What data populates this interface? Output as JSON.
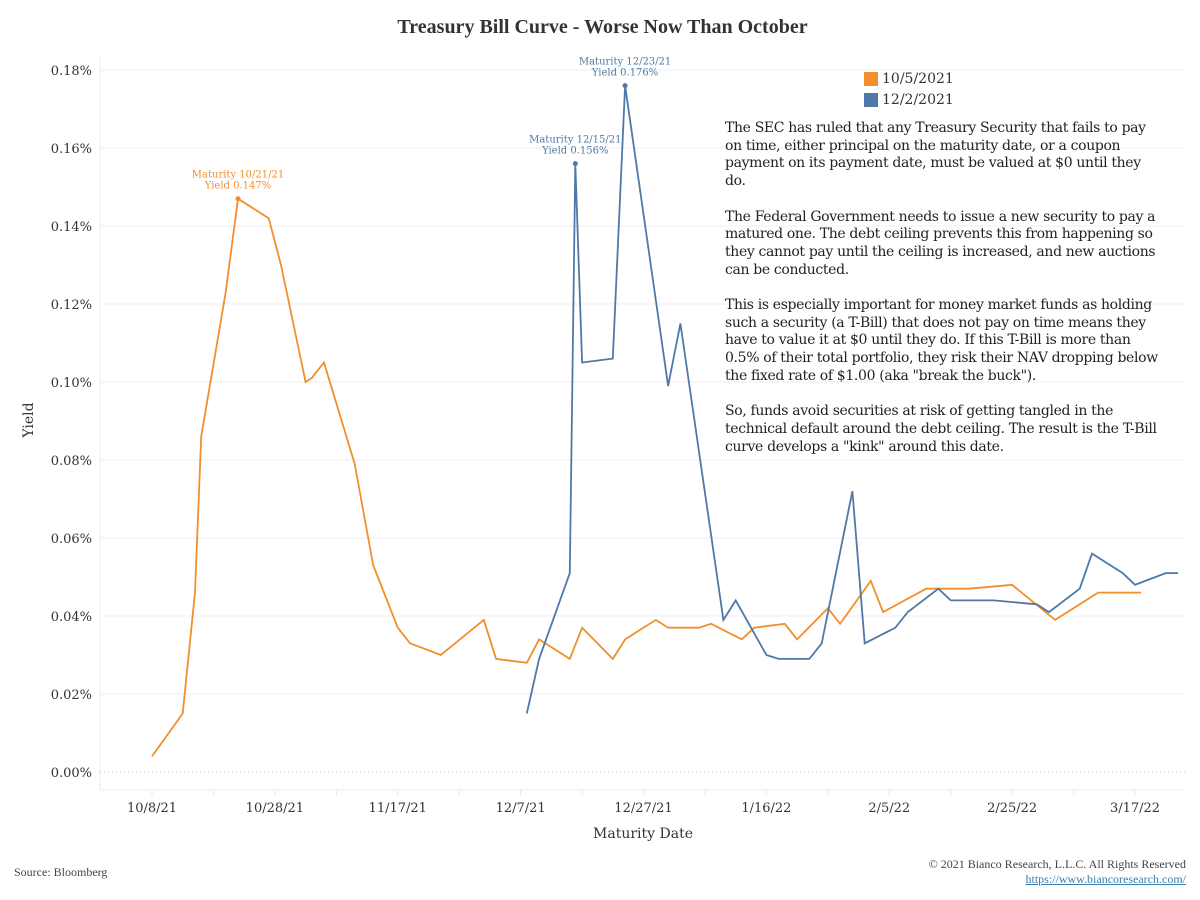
{
  "chart_data": {
    "type": "line",
    "title": "Treasury Bill Curve  - Worse Now Than October",
    "xlabel": "Maturity Date",
    "ylabel": "Yield",
    "ylim": [
      0,
      0.18
    ],
    "yticks": [
      "0.00%",
      "0.02%",
      "0.04%",
      "0.06%",
      "0.08%",
      "0.10%",
      "0.12%",
      "0.14%",
      "0.16%",
      "0.18%"
    ],
    "ytick_values": [
      0,
      0.02,
      0.04,
      0.06,
      0.08,
      0.1,
      0.12,
      0.14,
      0.16,
      0.18
    ],
    "xticks": [
      "10/8/21",
      "10/28/21",
      "11/17/21",
      "12/7/21",
      "12/27/21",
      "1/16/22",
      "2/5/22",
      "2/25/22",
      "3/17/22"
    ],
    "xtick_days": [
      0,
      20,
      40,
      60,
      80,
      100,
      120,
      140,
      160
    ],
    "x_unit": "days since 10/8/21",
    "xlim_days": [
      -9,
      169
    ],
    "grid": true,
    "legend_position": "top-right",
    "series": [
      {
        "name": "10/5/2021",
        "color": "#f28e2b",
        "points": [
          [
            0,
            0.004
          ],
          [
            5,
            0.015
          ],
          [
            7,
            0.046
          ],
          [
            8,
            0.086
          ],
          [
            12,
            0.123
          ],
          [
            14,
            0.147
          ],
          [
            19,
            0.142
          ],
          [
            21,
            0.13
          ],
          [
            25,
            0.1
          ],
          [
            26,
            0.101
          ],
          [
            28,
            0.105
          ],
          [
            33,
            0.079
          ],
          [
            36,
            0.053
          ],
          [
            40,
            0.037
          ],
          [
            42,
            0.033
          ],
          [
            47,
            0.03
          ],
          [
            54,
            0.039
          ],
          [
            56,
            0.029
          ],
          [
            61,
            0.028
          ],
          [
            63,
            0.034
          ],
          [
            68,
            0.029
          ],
          [
            70,
            0.037
          ],
          [
            75,
            0.029
          ],
          [
            77,
            0.034
          ],
          [
            82,
            0.039
          ],
          [
            84,
            0.037
          ],
          [
            89,
            0.037
          ],
          [
            91,
            0.038
          ],
          [
            96,
            0.034
          ],
          [
            98,
            0.037
          ],
          [
            103,
            0.038
          ],
          [
            105,
            0.034
          ],
          [
            110,
            0.042
          ],
          [
            112,
            0.038
          ],
          [
            117,
            0.049
          ],
          [
            119,
            0.041
          ],
          [
            126,
            0.047
          ],
          [
            133,
            0.047
          ],
          [
            140,
            0.048
          ],
          [
            147,
            0.039
          ],
          [
            154,
            0.046
          ],
          [
            161,
            0.046
          ]
        ]
      },
      {
        "name": "12/2/2021",
        "color": "#4e79a7",
        "points": [
          [
            61,
            0.015
          ],
          [
            63,
            0.029
          ],
          [
            68,
            0.051
          ],
          [
            68.9,
            0.156
          ],
          [
            70,
            0.105
          ],
          [
            75,
            0.106
          ],
          [
            77,
            0.176
          ],
          [
            84,
            0.099
          ],
          [
            86,
            0.115
          ],
          [
            93,
            0.039
          ],
          [
            95,
            0.044
          ],
          [
            100,
            0.03
          ],
          [
            102,
            0.029
          ],
          [
            107,
            0.029
          ],
          [
            109,
            0.033
          ],
          [
            114,
            0.072
          ],
          [
            116,
            0.033
          ],
          [
            121,
            0.037
          ],
          [
            123,
            0.041
          ],
          [
            128,
            0.047
          ],
          [
            130,
            0.044
          ],
          [
            137,
            0.044
          ],
          [
            144,
            0.043
          ],
          [
            146,
            0.041
          ],
          [
            151,
            0.047
          ],
          [
            153,
            0.056
          ],
          [
            158,
            0.051
          ],
          [
            160,
            0.048
          ],
          [
            165,
            0.051
          ],
          [
            167,
            0.051
          ]
        ]
      }
    ],
    "annotations": [
      {
        "series": "10/5/2021",
        "day": 14,
        "yield": 0.147,
        "line1": "Maturity 10/21/21",
        "line2": "Yield 0.147%"
      },
      {
        "series": "12/2/2021",
        "day": 68.9,
        "yield": 0.156,
        "line1": "Maturity 12/15/21",
        "line2": "Yield 0.156%"
      },
      {
        "series": "12/2/2021",
        "day": 77,
        "yield": 0.176,
        "line1": "Maturity 12/23/21",
        "line2": "Yield 0.176%"
      }
    ]
  },
  "legend": [
    {
      "label": "10/5/2021",
      "color": "#f28e2b"
    },
    {
      "label": "12/2/2021",
      "color": "#4e79a7"
    }
  ],
  "commentary": [
    "The SEC has ruled that any Treasury Security that fails to pay on time, either principal on the maturity date, or a coupon payment on its payment date, must be valued at $0 until they do.",
    "The Federal Government needs to issue a new security to pay a matured one.  The debt ceiling prevents this from happening so they cannot pay until the ceiling is increased, and new auctions can be conducted.",
    "This is especially important for money market funds as holding such a security (a T-Bill) that does not pay on time means they have to value it at $0 until they do. If this T-Bill is more than 0.5% of their total portfolio, they risk their NAV dropping below the fixed rate of $1.00 (aka \"break the buck\").",
    "So, funds avoid securities at risk of getting tangled in the technical default around the debt ceiling. The result is the T-Bill curve develops a \"kink\" around this date."
  ],
  "footer": {
    "source": "Source: Bloomberg",
    "copyright": "© 2021 Bianco Research, L.L.C. All Rights Reserved",
    "link": "https://www.biancoresearch.com/"
  }
}
